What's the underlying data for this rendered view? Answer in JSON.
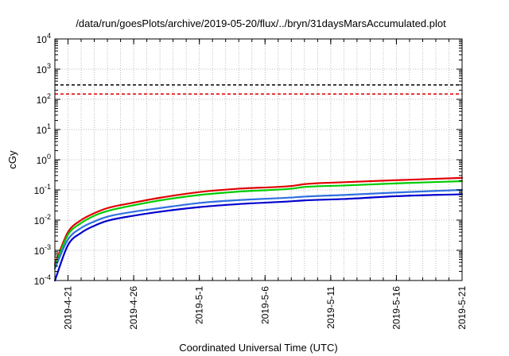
{
  "chart_data": {
    "type": "line",
    "title": "/data/run/goesPlots/archive/2019-05-20/flux/../bryn/31daysMarsAccumulated.plot",
    "xlabel": "Coordinated Universal Time (UTC)",
    "ylabel": "cGy",
    "x_type": "date",
    "xlim": [
      "2019-04-20",
      "2019-05-21"
    ],
    "ylim": [
      0.0001,
      10000
    ],
    "y_scale": "log",
    "grid": true,
    "x_ticks": [
      "2019-4-21",
      "2019-4-26",
      "2019-5-1",
      "2019-5-6",
      "2019-5-11",
      "2019-5-16",
      "2019-5-21"
    ],
    "y_tick_base": "10",
    "y_tick_exponents": [
      "-4",
      "-3",
      "-2",
      "-1",
      "0",
      "1",
      "2",
      "3",
      "4"
    ],
    "reference_lines": [
      {
        "y": 300,
        "color": "#000000",
        "style": "dashed"
      },
      {
        "y": 150,
        "color": "#e00000",
        "style": "dashed"
      }
    ],
    "series": [
      {
        "color": "#e00000",
        "x": [
          "2019-04-20",
          "2019-04-21",
          "2019-04-22",
          "2019-04-23",
          "2019-04-24",
          "2019-04-26",
          "2019-04-28",
          "2019-05-01",
          "2019-05-04",
          "2019-05-08",
          "2019-05-09",
          "2019-05-12",
          "2019-05-16",
          "2019-05-21"
        ],
        "values": [
          0.00035,
          0.004,
          0.01,
          0.017,
          0.025,
          0.038,
          0.055,
          0.085,
          0.11,
          0.135,
          0.155,
          0.18,
          0.21,
          0.25
        ]
      },
      {
        "color": "#00cc00",
        "x": [
          "2019-04-20",
          "2019-04-21",
          "2019-04-22",
          "2019-04-23",
          "2019-04-24",
          "2019-04-26",
          "2019-04-28",
          "2019-05-01",
          "2019-05-04",
          "2019-05-08",
          "2019-05-09",
          "2019-05-12",
          "2019-05-16",
          "2019-05-21"
        ],
        "values": [
          0.0003,
          0.0033,
          0.008,
          0.014,
          0.02,
          0.031,
          0.045,
          0.068,
          0.088,
          0.11,
          0.125,
          0.14,
          0.165,
          0.195
        ]
      },
      {
        "color": "#3070e0",
        "x": [
          "2019-04-20",
          "2019-04-21",
          "2019-04-22",
          "2019-04-23",
          "2019-04-24",
          "2019-04-26",
          "2019-04-28",
          "2019-05-01",
          "2019-05-04",
          "2019-05-08",
          "2019-05-09",
          "2019-05-12",
          "2019-05-16",
          "2019-05-21"
        ],
        "values": [
          0.00025,
          0.0023,
          0.0055,
          0.009,
          0.013,
          0.019,
          0.025,
          0.037,
          0.046,
          0.056,
          0.06,
          0.068,
          0.082,
          0.1
        ]
      },
      {
        "color": "#0000cc",
        "x": [
          "2019-04-20",
          "2019-04-21",
          "2019-04-22",
          "2019-04-23",
          "2019-04-24",
          "2019-04-26",
          "2019-04-28",
          "2019-05-01",
          "2019-05-04",
          "2019-05-08",
          "2019-05-09",
          "2019-05-12",
          "2019-05-16",
          "2019-05-21"
        ],
        "values": [
          0.0001,
          0.0015,
          0.0038,
          0.0065,
          0.0095,
          0.014,
          0.019,
          0.027,
          0.034,
          0.042,
          0.045,
          0.05,
          0.062,
          0.072
        ]
      }
    ]
  }
}
